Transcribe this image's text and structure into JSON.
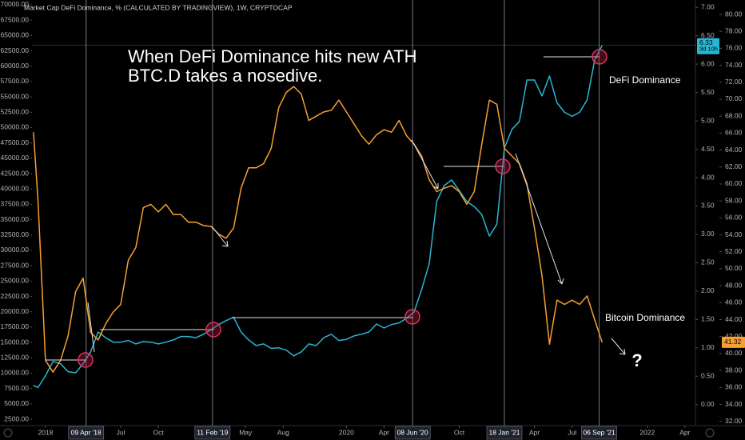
{
  "chart_data": {
    "type": "line",
    "title": "Market Cap DeFi Dominance, % (CALCULATED BY TRADINGVIEW), 1W, CRYPTOCAP",
    "annotation": [
      "When DeFi Dominance hits new ATH",
      "BTC.D takes a nosedive."
    ],
    "question": "?",
    "countdown": "3d 10h",
    "xlim": [
      2017.91,
      2022.32
    ],
    "xticks": [
      {
        "value": 2018,
        "label": "2018"
      },
      {
        "value": 2018.5,
        "label": "Jul"
      },
      {
        "value": 2018.75,
        "label": "Oct"
      },
      {
        "value": 2019.33,
        "label": "May"
      },
      {
        "value": 2019.58,
        "label": "Aug"
      },
      {
        "value": 2020,
        "label": "2020"
      },
      {
        "value": 2020.25,
        "label": "Apr"
      },
      {
        "value": 2020.75,
        "label": "Oct"
      },
      {
        "value": 2021.25,
        "label": "Apr"
      },
      {
        "value": 2021.5,
        "label": "Jul"
      },
      {
        "value": 2022,
        "label": "2022"
      },
      {
        "value": 2022.25,
        "label": "Apr"
      }
    ],
    "date_markers": [
      {
        "value": 2018.27,
        "label": "09 Apr '18"
      },
      {
        "value": 2019.11,
        "label": "11 Feb '19"
      },
      {
        "value": 2020.44,
        "label": "08 Jun '20"
      },
      {
        "value": 2021.05,
        "label": "18 Jan '21"
      },
      {
        "value": 2021.68,
        "label": "06 Sep '21"
      }
    ],
    "ylim": [
      -0.37,
      7.13
    ],
    "yticks": [
      {
        "value": 0,
        "label": "0.00"
      },
      {
        "value": 0.5,
        "label": "0.50"
      },
      {
        "value": 1,
        "label": "1.00"
      },
      {
        "value": 1.5,
        "label": "1.50"
      },
      {
        "value": 2,
        "label": "2.00"
      },
      {
        "value": 2.5,
        "label": "2.50"
      },
      {
        "value": 3,
        "label": "3.00"
      },
      {
        "value": 3.5,
        "label": "3.50"
      },
      {
        "value": 4,
        "label": "4.00"
      },
      {
        "value": 4.5,
        "label": "4.50"
      },
      {
        "value": 5,
        "label": "5.00"
      },
      {
        "value": 5.5,
        "label": "5.50"
      },
      {
        "value": 6,
        "label": "6.00"
      },
      {
        "value": 6.5,
        "label": "6.50"
      },
      {
        "value": 7,
        "label": "7.00"
      }
    ],
    "y2lim": [
      31.5,
      81.7
    ],
    "y2ticks": [
      {
        "value": 32,
        "label": "32.00"
      },
      {
        "value": 34,
        "label": "34.00"
      },
      {
        "value": 36,
        "label": "36.00"
      },
      {
        "value": 38,
        "label": "38.00"
      },
      {
        "value": 40,
        "label": "40.00"
      },
      {
        "value": 42,
        "label": "42.00"
      },
      {
        "value": 44,
        "label": "44.00"
      },
      {
        "value": 46,
        "label": "46.00"
      },
      {
        "value": 48,
        "label": "48.00"
      },
      {
        "value": 50,
        "label": "50.00"
      },
      {
        "value": 52,
        "label": "52.00"
      },
      {
        "value": 54,
        "label": "54.00"
      },
      {
        "value": 56,
        "label": "56.00"
      },
      {
        "value": 58,
        "label": "58.00"
      },
      {
        "value": 60,
        "label": "60.00"
      },
      {
        "value": 62,
        "label": "62.00"
      },
      {
        "value": 64,
        "label": "64.00"
      },
      {
        "value": 66,
        "label": "66.00"
      },
      {
        "value": 68,
        "label": "68.00"
      },
      {
        "value": 70,
        "label": "70.00"
      },
      {
        "value": 72,
        "label": "72.00"
      },
      {
        "value": 74,
        "label": "74.00"
      },
      {
        "value": 76,
        "label": "76.00"
      },
      {
        "value": 78,
        "label": "78.00"
      },
      {
        "value": 80,
        "label": "80.00"
      }
    ],
    "y3lim": [
      1460,
      70780
    ],
    "y3ticks": [
      {
        "value": 2500,
        "label": "2500.00"
      },
      {
        "value": 5000,
        "label": "5000.00"
      },
      {
        "value": 7500,
        "label": "7500.00"
      },
      {
        "value": 10000,
        "label": "10000.00"
      },
      {
        "value": 12500,
        "label": "12500.00"
      },
      {
        "value": 15000,
        "label": "15000.00"
      },
      {
        "value": 17500,
        "label": "17500.00"
      },
      {
        "value": 20000,
        "label": "20000.00"
      },
      {
        "value": 22500,
        "label": "22500.00"
      },
      {
        "value": 25000,
        "label": "25000.00"
      },
      {
        "value": 27500,
        "label": "27500.00"
      },
      {
        "value": 30000,
        "label": "30000.00"
      },
      {
        "value": 32500,
        "label": "32500.00"
      },
      {
        "value": 35000,
        "label": "35000.00"
      },
      {
        "value": 37500,
        "label": "37500.00"
      },
      {
        "value": 40000,
        "label": "40000.00"
      },
      {
        "value": 42500,
        "label": "42500.00"
      },
      {
        "value": 45000,
        "label": "45000.00"
      },
      {
        "value": 47500,
        "label": "47500.00"
      },
      {
        "value": 50000,
        "label": "50000.00"
      },
      {
        "value": 52500,
        "label": "52500.00"
      },
      {
        "value": 55000,
        "label": "55000.00"
      },
      {
        "value": 57500,
        "label": "57500.00"
      },
      {
        "value": 60000,
        "label": "60000.00"
      },
      {
        "value": 62500,
        "label": "62500.00"
      },
      {
        "value": 65000,
        "label": "65000.00"
      },
      {
        "value": 67500,
        "label": "67500.00"
      },
      {
        "value": 70000,
        "label": "70000.00"
      }
    ],
    "x": [
      2017.92,
      2017.95,
      2018.0,
      2018.05,
      2018.1,
      2018.15,
      2018.2,
      2018.25,
      2018.3,
      2018.35,
      2018.4,
      2018.45,
      2018.5,
      2018.55,
      2018.6,
      2018.65,
      2018.7,
      2018.75,
      2018.8,
      2018.85,
      2018.9,
      2018.95,
      2019.0,
      2019.05,
      2019.1,
      2019.15,
      2019.2,
      2019.25,
      2019.3,
      2019.35,
      2019.4,
      2019.45,
      2019.5,
      2019.55,
      2019.6,
      2019.65,
      2019.7,
      2019.75,
      2019.8,
      2019.85,
      2019.9,
      2019.95,
      2020.0,
      2020.05,
      2020.1,
      2020.15,
      2020.2,
      2020.25,
      2020.3,
      2020.35,
      2020.4,
      2020.45,
      2020.5,
      2020.55,
      2020.6,
      2020.65,
      2020.7,
      2020.75,
      2020.8,
      2020.85,
      2020.9,
      2020.95,
      2021.0,
      2021.05,
      2021.1,
      2021.15,
      2021.2,
      2021.25,
      2021.3,
      2021.35,
      2021.4,
      2021.45,
      2021.5,
      2021.55,
      2021.6,
      2021.65,
      2021.7
    ],
    "series": [
      {
        "name": "DeFi Dominance",
        "color": "#29b6d3",
        "values": [
          0.34,
          0.3,
          0.51,
          0.76,
          0.72,
          0.58,
          0.56,
          0.72,
          0.93,
          1.28,
          1.18,
          1.1,
          1.1,
          1.13,
          1.07,
          1.11,
          1.1,
          1.07,
          1.1,
          1.14,
          1.2,
          1.2,
          1.18,
          1.24,
          1.32,
          1.41,
          1.48,
          1.54,
          1.28,
          1.14,
          1.04,
          1.07,
          0.99,
          1.0,
          0.96,
          0.86,
          0.93,
          1.07,
          1.04,
          1.18,
          1.24,
          1.13,
          1.15,
          1.21,
          1.24,
          1.28,
          1.42,
          1.35,
          1.41,
          1.44,
          1.52,
          1.63,
          2.03,
          2.48,
          3.58,
          3.86,
          3.96,
          3.77,
          3.58,
          3.49,
          3.35,
          2.97,
          3.18,
          4.52,
          4.85,
          4.99,
          5.72,
          5.72,
          5.44,
          5.79,
          5.32,
          5.15,
          5.08,
          5.15,
          5.37,
          6.07,
          6.33
        ]
      },
      {
        "name": "Bitcoin Dominance",
        "color": "#f7a030",
        "axis": "y2",
        "values": [
          66.1,
          58.1,
          39.2,
          37.8,
          39.2,
          42.1,
          47.3,
          48.9,
          42.5,
          41.6,
          43.5,
          44.9,
          45.8,
          51.0,
          52.5,
          57.2,
          57.6,
          56.7,
          57.6,
          56.4,
          56.4,
          55.5,
          55.5,
          55.1,
          55.0,
          54.1,
          53.6,
          54.8,
          59.5,
          61.9,
          61.9,
          62.4,
          64.2,
          69.0,
          70.8,
          71.5,
          70.6,
          67.5,
          68.0,
          68.5,
          68.7,
          69.9,
          68.5,
          67.1,
          65.7,
          64.7,
          65.8,
          66.4,
          66.1,
          67.5,
          65.7,
          64.7,
          63.3,
          60.5,
          59.1,
          59.5,
          59.8,
          59.1,
          57.6,
          59.1,
          64.7,
          69.9,
          69.4,
          64.2,
          63.3,
          62.4,
          60.0,
          54.8,
          49.2,
          41.1,
          46.3,
          45.8,
          46.3,
          45.8,
          46.8,
          44.0,
          41.32
        ]
      }
    ]
  }
}
